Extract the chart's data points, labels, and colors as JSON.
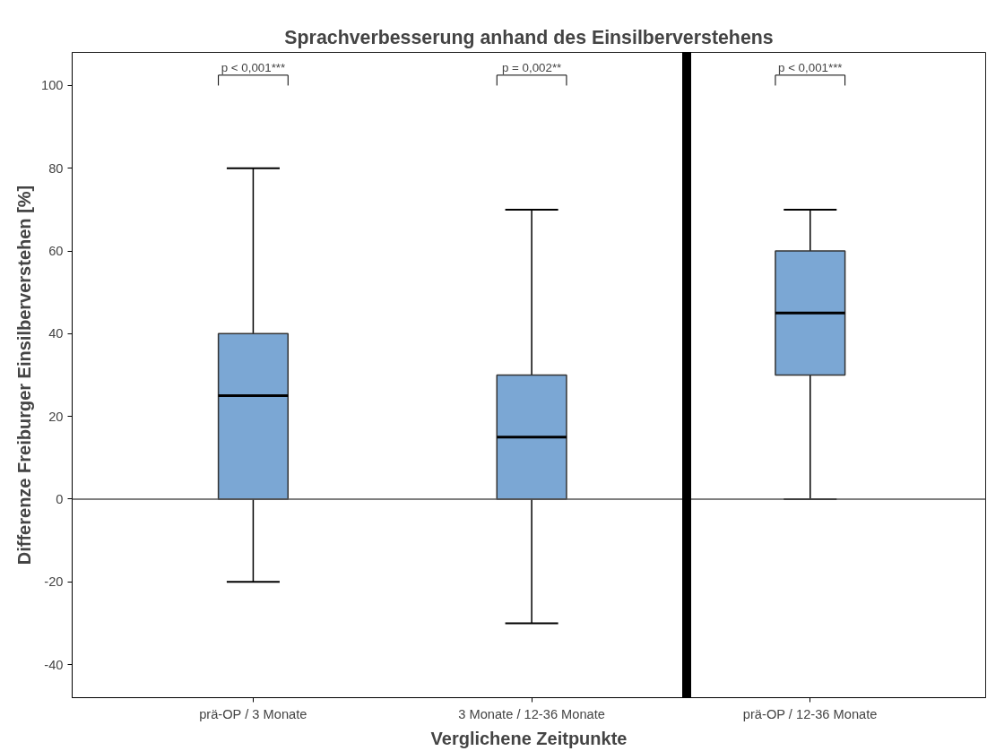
{
  "chart_data": {
    "type": "box",
    "title": "Sprachverbesserung anhand des Einsilberverstehens",
    "xlabel": "Verglichene Zeitpunkte",
    "ylabel": "Differenze Freiburger Einsilberverstehen [%]",
    "categories": [
      "prä-OP / 3 Monate",
      "3 Monate / 12-36 Monate",
      "prä-OP / 12-36 Monate"
    ],
    "series": [
      {
        "color": "#7ba7d4",
        "boxes": [
          {
            "low": -20,
            "q1": 0,
            "median": 25,
            "q3": 40,
            "high": 80
          },
          {
            "low": -30,
            "q1": 0,
            "median": 15,
            "q3": 30,
            "high": 70
          },
          {
            "low": 0,
            "q1": 30,
            "median": 45,
            "q3": 60,
            "high": 70
          }
        ]
      }
    ],
    "ylim": [
      -48,
      108
    ],
    "yticks": [
      -40,
      -20,
      0,
      20,
      40,
      60,
      80,
      100
    ],
    "ref_lines": [
      {
        "axis": "y",
        "value": 0,
        "color": "#555555"
      }
    ],
    "annotations": [
      "p < 0,001***",
      "p = 0,002**",
      "p < 0,001***"
    ],
    "grid": false
  }
}
